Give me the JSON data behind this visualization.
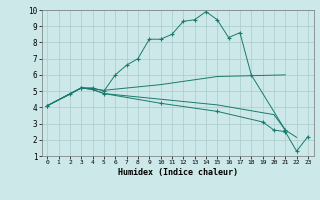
{
  "xlabel": "Humidex (Indice chaleur)",
  "bg_color": "#cce8e8",
  "grid_color": "#aacccc",
  "line_color": "#1a7a6e",
  "xlim": [
    -0.5,
    23.5
  ],
  "ylim": [
    1,
    10
  ],
  "xticks": [
    0,
    1,
    2,
    3,
    4,
    5,
    6,
    7,
    8,
    9,
    10,
    11,
    12,
    13,
    14,
    15,
    16,
    17,
    18,
    19,
    20,
    21,
    22,
    23
  ],
  "yticks": [
    1,
    2,
    3,
    4,
    5,
    6,
    7,
    8,
    9,
    10
  ],
  "series": [
    {
      "x": [
        0,
        2,
        3,
        4,
        5,
        6,
        7,
        8,
        9,
        10,
        11,
        12,
        13,
        14,
        15,
        16,
        17,
        18,
        21
      ],
      "y": [
        4.1,
        4.8,
        5.2,
        5.2,
        5.0,
        6.0,
        6.6,
        7.0,
        8.2,
        8.2,
        8.5,
        9.3,
        9.4,
        9.9,
        9.4,
        8.3,
        8.6,
        6.0,
        2.6
      ],
      "marker": "+"
    },
    {
      "x": [
        0,
        3,
        4,
        5,
        10,
        15,
        18,
        21
      ],
      "y": [
        4.1,
        5.2,
        5.15,
        5.05,
        5.4,
        5.9,
        5.95,
        6.0
      ],
      "marker": null
    },
    {
      "x": [
        0,
        3,
        4,
        5,
        10,
        15,
        20,
        21,
        22
      ],
      "y": [
        4.1,
        5.2,
        5.1,
        4.85,
        4.5,
        4.15,
        3.55,
        2.6,
        2.15
      ],
      "marker": null
    },
    {
      "x": [
        0,
        3,
        4,
        5,
        10,
        15,
        19,
        20,
        21,
        22,
        23
      ],
      "y": [
        4.1,
        5.2,
        5.1,
        4.85,
        4.25,
        3.75,
        3.1,
        2.6,
        2.5,
        1.3,
        2.2
      ],
      "marker": "+"
    }
  ]
}
